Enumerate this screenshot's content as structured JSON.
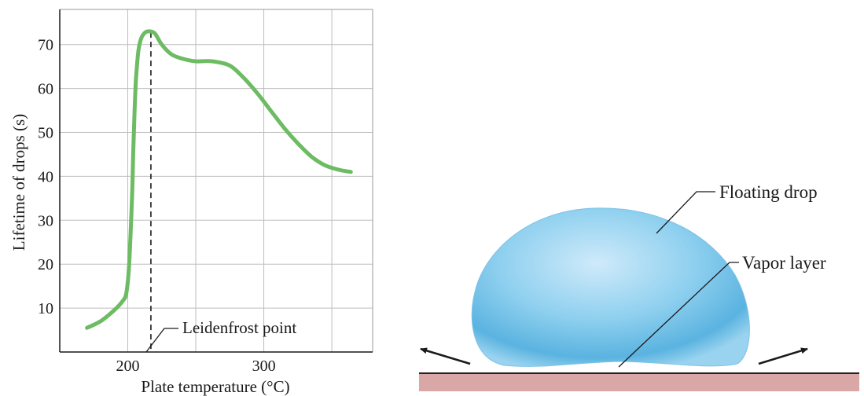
{
  "chart_data": {
    "type": "line",
    "xlabel": "Plate temperature (°C)",
    "ylabel": "Lifetime of drops (s)",
    "xlim": [
      150,
      380
    ],
    "ylim": [
      0,
      78
    ],
    "x_ticks": [
      200,
      300
    ],
    "y_ticks": [
      10,
      20,
      30,
      40,
      50,
      60,
      70
    ],
    "grid": true,
    "series": [
      {
        "color": "#6dbb63",
        "x": [
          170,
          180,
          190,
          196,
          199,
          201,
          203,
          204,
          205,
          206,
          207,
          208,
          210,
          213,
          216,
          220,
          225,
          232,
          240,
          250,
          262,
          275,
          285,
          295,
          305,
          315,
          325,
          335,
          345,
          355,
          364
        ],
        "y": [
          5.5,
          7,
          9.5,
          11.5,
          13.5,
          20,
          34,
          45,
          55,
          62,
          66,
          69,
          71.5,
          72.8,
          73,
          72.5,
          70,
          67.8,
          66.8,
          66.2,
          66.2,
          65.2,
          62.5,
          59,
          55,
          51,
          47.5,
          44.5,
          42.5,
          41.5,
          41
        ]
      }
    ],
    "annotations": [
      {
        "label": "Leidenfrost point",
        "x": 217
      }
    ]
  },
  "diagram": {
    "drop_label": "Floating drop",
    "vapor_label": "Vapor layer",
    "colors": {
      "drop": "#7ec8ec",
      "drop_core": "#b9e2f7",
      "plate": "#d9a7a6",
      "surface": "#222222"
    }
  }
}
